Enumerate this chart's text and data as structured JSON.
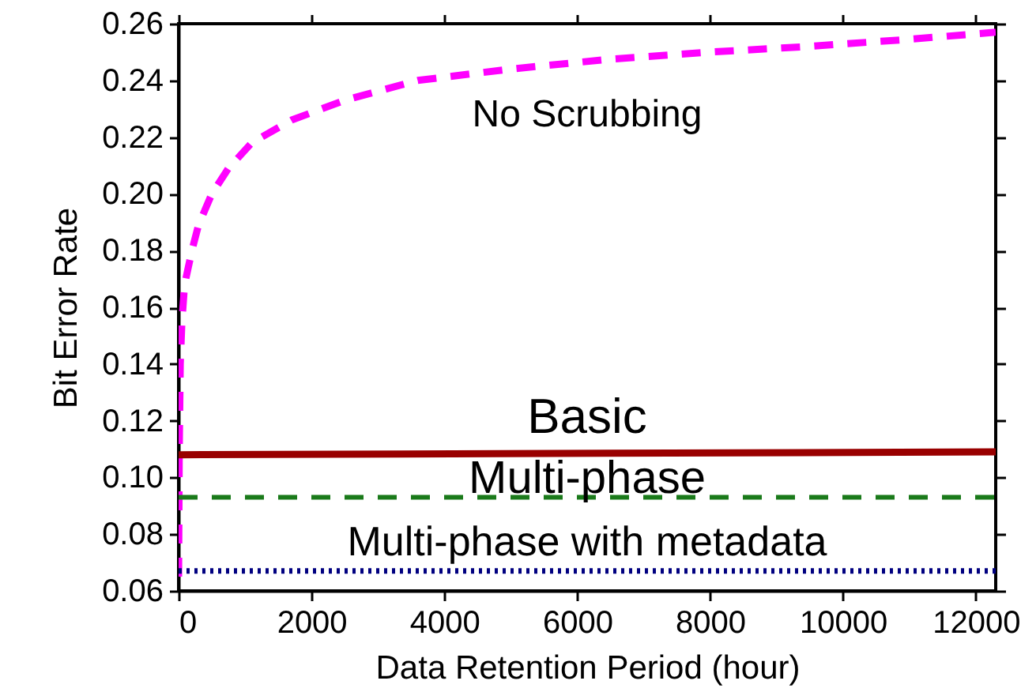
{
  "chart_data": {
    "type": "line",
    "xlabel": "Data Retention Period (hour)",
    "ylabel": "Bit Error Rate",
    "xlim": [
      0,
      12300
    ],
    "ylim": [
      0.06,
      0.26
    ],
    "xticks": [
      0,
      2000,
      4000,
      6000,
      8000,
      10000,
      12000
    ],
    "yticks": [
      0.06,
      0.08,
      {
        "value": 0.1,
        "label": "0.10"
      },
      0.12,
      0.14,
      0.16,
      0.18,
      {
        "value": 0.2,
        "label": "0.20"
      },
      0.22,
      0.24,
      0.26
    ],
    "grid": false,
    "marker": "none",
    "series": [
      {
        "name": "No Scrubbing",
        "color": "#ff00ff",
        "line_style": "dashed",
        "x": [
          0,
          10,
          25,
          50,
          90,
          200,
          300,
          500,
          750,
          1100,
          1700,
          2500,
          3600,
          5000,
          6500,
          8000,
          9500,
          11000,
          12300
        ],
        "values": [
          0.065,
          0.11,
          0.14,
          0.155,
          0.168,
          0.18,
          0.189,
          0.2,
          0.209,
          0.218,
          0.226,
          0.233,
          0.24,
          0.244,
          0.2475,
          0.25,
          0.252,
          0.2545,
          0.257
        ]
      },
      {
        "name": "Basic",
        "color": "#990000",
        "line_style": "solid",
        "x": [
          0,
          12300
        ],
        "values": [
          0.108,
          0.109
        ]
      },
      {
        "name": "Multi-phase",
        "color": "#1a7a1a",
        "line_style": "dashed",
        "x": [
          0,
          12300
        ],
        "values": [
          0.093,
          0.093
        ]
      },
      {
        "name": "Multi-phase with metadata",
        "color": "#000080",
        "line_style": "dotted",
        "x": [
          0,
          12300
        ],
        "values": [
          0.067,
          0.067
        ]
      }
    ]
  }
}
